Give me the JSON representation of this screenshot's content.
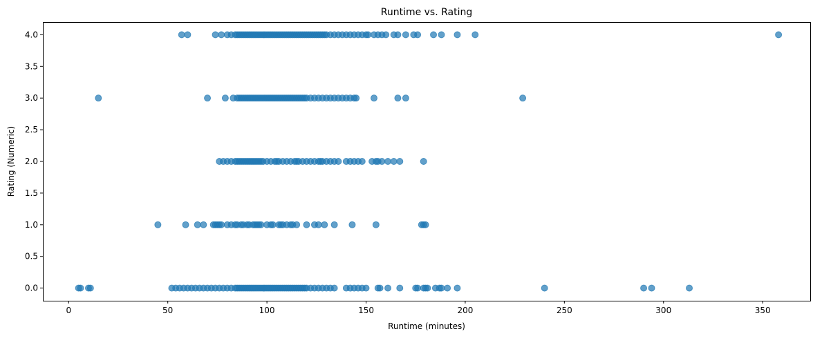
{
  "chart_data": {
    "type": "scatter",
    "title": "Runtime vs. Rating",
    "xlabel": "Runtime (minutes)",
    "ylabel": "Rating (Numeric)",
    "xlim": [
      -13,
      374
    ],
    "ylim": [
      -0.2,
      4.2
    ],
    "xticks": [
      0,
      50,
      100,
      150,
      200,
      250,
      300,
      350
    ],
    "xtick_labels": [
      "0",
      "50",
      "100",
      "150",
      "200",
      "250",
      "300",
      "350"
    ],
    "yticks": [
      0,
      0.5,
      1,
      1.5,
      2,
      2.5,
      3,
      3.5,
      4
    ],
    "ytick_labels": [
      "0.0",
      "0.5",
      "1.0",
      "1.5",
      "2.0",
      "2.5",
      "3.0",
      "3.5",
      "4.0"
    ],
    "grid": false,
    "marker_color": "#1f77b4",
    "marker_alpha": 0.7,
    "series": [
      {
        "points": [
          [
            57,
            4
          ],
          [
            60,
            4
          ],
          [
            74,
            4
          ],
          [
            77,
            4
          ],
          [
            80,
            4
          ],
          [
            82,
            4
          ],
          [
            84,
            4
          ],
          [
            85,
            4
          ],
          [
            86,
            4
          ],
          [
            87,
            4
          ],
          [
            88,
            4
          ],
          [
            89,
            4
          ],
          [
            90,
            4
          ],
          [
            91,
            4
          ],
          [
            92,
            4
          ],
          [
            93,
            4
          ],
          [
            94,
            4
          ],
          [
            95,
            4
          ],
          [
            96,
            4
          ],
          [
            97,
            4
          ],
          [
            98,
            4
          ],
          [
            99,
            4
          ],
          [
            100,
            4
          ],
          [
            101,
            4
          ],
          [
            102,
            4
          ],
          [
            103,
            4
          ],
          [
            104,
            4
          ],
          [
            105,
            4
          ],
          [
            106,
            4
          ],
          [
            107,
            4
          ],
          [
            108,
            4
          ],
          [
            109,
            4
          ],
          [
            110,
            4
          ],
          [
            111,
            4
          ],
          [
            112,
            4
          ],
          [
            113,
            4
          ],
          [
            114,
            4
          ],
          [
            115,
            4
          ],
          [
            116,
            4
          ],
          [
            117,
            4
          ],
          [
            118,
            4
          ],
          [
            119,
            4
          ],
          [
            120,
            4
          ],
          [
            121,
            4
          ],
          [
            122,
            4
          ],
          [
            123,
            4
          ],
          [
            124,
            4
          ],
          [
            125,
            4
          ],
          [
            126,
            4
          ],
          [
            127,
            4
          ],
          [
            128,
            4
          ],
          [
            129,
            4
          ],
          [
            130,
            4
          ],
          [
            132,
            4
          ],
          [
            134,
            4
          ],
          [
            136,
            4
          ],
          [
            138,
            4
          ],
          [
            140,
            4
          ],
          [
            142,
            4
          ],
          [
            144,
            4
          ],
          [
            146,
            4
          ],
          [
            148,
            4
          ],
          [
            150,
            4
          ],
          [
            151,
            4
          ],
          [
            154,
            4
          ],
          [
            156,
            4
          ],
          [
            158,
            4
          ],
          [
            160,
            4
          ],
          [
            164,
            4
          ],
          [
            166,
            4
          ],
          [
            170,
            4
          ],
          [
            174,
            4
          ],
          [
            176,
            4
          ],
          [
            184,
            4
          ],
          [
            188,
            4
          ],
          [
            196,
            4
          ],
          [
            205,
            4
          ],
          [
            358,
            4
          ],
          [
            15,
            3
          ],
          [
            70,
            3
          ],
          [
            79,
            3
          ],
          [
            83,
            3
          ],
          [
            85,
            3
          ],
          [
            86,
            3
          ],
          [
            87,
            3
          ],
          [
            88,
            3
          ],
          [
            89,
            3
          ],
          [
            90,
            3
          ],
          [
            91,
            3
          ],
          [
            92,
            3
          ],
          [
            93,
            3
          ],
          [
            94,
            3
          ],
          [
            95,
            3
          ],
          [
            96,
            3
          ],
          [
            97,
            3
          ],
          [
            98,
            3
          ],
          [
            99,
            3
          ],
          [
            100,
            3
          ],
          [
            101,
            3
          ],
          [
            102,
            3
          ],
          [
            103,
            3
          ],
          [
            104,
            3
          ],
          [
            105,
            3
          ],
          [
            106,
            3
          ],
          [
            107,
            3
          ],
          [
            108,
            3
          ],
          [
            109,
            3
          ],
          [
            110,
            3
          ],
          [
            111,
            3
          ],
          [
            112,
            3
          ],
          [
            113,
            3
          ],
          [
            114,
            3
          ],
          [
            115,
            3
          ],
          [
            116,
            3
          ],
          [
            117,
            3
          ],
          [
            118,
            3
          ],
          [
            119,
            3
          ],
          [
            120,
            3
          ],
          [
            122,
            3
          ],
          [
            124,
            3
          ],
          [
            126,
            3
          ],
          [
            128,
            3
          ],
          [
            130,
            3
          ],
          [
            132,
            3
          ],
          [
            134,
            3
          ],
          [
            136,
            3
          ],
          [
            138,
            3
          ],
          [
            140,
            3
          ],
          [
            142,
            3
          ],
          [
            144,
            3
          ],
          [
            145,
            3
          ],
          [
            154,
            3
          ],
          [
            166,
            3
          ],
          [
            170,
            3
          ],
          [
            229,
            3
          ],
          [
            76,
            2
          ],
          [
            78,
            2
          ],
          [
            80,
            2
          ],
          [
            82,
            2
          ],
          [
            84,
            2
          ],
          [
            85,
            2
          ],
          [
            86,
            2
          ],
          [
            87,
            2
          ],
          [
            88,
            2
          ],
          [
            89,
            2
          ],
          [
            90,
            2
          ],
          [
            91,
            2
          ],
          [
            92,
            2
          ],
          [
            93,
            2
          ],
          [
            94,
            2
          ],
          [
            95,
            2
          ],
          [
            96,
            2
          ],
          [
            97,
            2
          ],
          [
            98,
            2
          ],
          [
            100,
            2
          ],
          [
            102,
            2
          ],
          [
            104,
            2
          ],
          [
            105,
            2
          ],
          [
            106,
            2
          ],
          [
            108,
            2
          ],
          [
            110,
            2
          ],
          [
            112,
            2
          ],
          [
            114,
            2
          ],
          [
            115,
            2
          ],
          [
            116,
            2
          ],
          [
            118,
            2
          ],
          [
            120,
            2
          ],
          [
            122,
            2
          ],
          [
            124,
            2
          ],
          [
            126,
            2
          ],
          [
            127,
            2
          ],
          [
            128,
            2
          ],
          [
            130,
            2
          ],
          [
            132,
            2
          ],
          [
            134,
            2
          ],
          [
            136,
            2
          ],
          [
            140,
            2
          ],
          [
            142,
            2
          ],
          [
            144,
            2
          ],
          [
            146,
            2
          ],
          [
            148,
            2
          ],
          [
            153,
            2
          ],
          [
            155,
            2
          ],
          [
            156,
            2
          ],
          [
            158,
            2
          ],
          [
            161,
            2
          ],
          [
            164,
            2
          ],
          [
            167,
            2
          ],
          [
            179,
            2
          ],
          [
            45,
            1
          ],
          [
            59,
            1
          ],
          [
            65,
            1
          ],
          [
            68,
            1
          ],
          [
            73,
            1
          ],
          [
            74,
            1
          ],
          [
            75,
            1
          ],
          [
            76,
            1
          ],
          [
            77,
            1
          ],
          [
            80,
            1
          ],
          [
            82,
            1
          ],
          [
            84,
            1
          ],
          [
            85,
            1
          ],
          [
            87,
            1
          ],
          [
            88,
            1
          ],
          [
            90,
            1
          ],
          [
            91,
            1
          ],
          [
            93,
            1
          ],
          [
            94,
            1
          ],
          [
            95,
            1
          ],
          [
            96,
            1
          ],
          [
            97,
            1
          ],
          [
            100,
            1
          ],
          [
            102,
            1
          ],
          [
            103,
            1
          ],
          [
            106,
            1
          ],
          [
            107,
            1
          ],
          [
            108,
            1
          ],
          [
            110,
            1
          ],
          [
            112,
            1
          ],
          [
            113,
            1
          ],
          [
            115,
            1
          ],
          [
            120,
            1
          ],
          [
            124,
            1
          ],
          [
            126,
            1
          ],
          [
            129,
            1
          ],
          [
            134,
            1
          ],
          [
            143,
            1
          ],
          [
            155,
            1
          ],
          [
            178,
            1
          ],
          [
            179,
            1
          ],
          [
            180,
            1
          ],
          [
            5,
            0
          ],
          [
            6,
            0
          ],
          [
            10,
            0
          ],
          [
            11,
            0
          ],
          [
            52,
            0
          ],
          [
            54,
            0
          ],
          [
            56,
            0
          ],
          [
            58,
            0
          ],
          [
            60,
            0
          ],
          [
            62,
            0
          ],
          [
            64,
            0
          ],
          [
            66,
            0
          ],
          [
            68,
            0
          ],
          [
            70,
            0
          ],
          [
            72,
            0
          ],
          [
            74,
            0
          ],
          [
            76,
            0
          ],
          [
            78,
            0
          ],
          [
            80,
            0
          ],
          [
            82,
            0
          ],
          [
            84,
            0
          ],
          [
            85,
            0
          ],
          [
            86,
            0
          ],
          [
            87,
            0
          ],
          [
            88,
            0
          ],
          [
            89,
            0
          ],
          [
            90,
            0
          ],
          [
            91,
            0
          ],
          [
            92,
            0
          ],
          [
            93,
            0
          ],
          [
            94,
            0
          ],
          [
            95,
            0
          ],
          [
            96,
            0
          ],
          [
            97,
            0
          ],
          [
            98,
            0
          ],
          [
            99,
            0
          ],
          [
            100,
            0
          ],
          [
            101,
            0
          ],
          [
            102,
            0
          ],
          [
            103,
            0
          ],
          [
            104,
            0
          ],
          [
            105,
            0
          ],
          [
            106,
            0
          ],
          [
            107,
            0
          ],
          [
            108,
            0
          ],
          [
            109,
            0
          ],
          [
            110,
            0
          ],
          [
            111,
            0
          ],
          [
            112,
            0
          ],
          [
            113,
            0
          ],
          [
            114,
            0
          ],
          [
            115,
            0
          ],
          [
            116,
            0
          ],
          [
            117,
            0
          ],
          [
            118,
            0
          ],
          [
            119,
            0
          ],
          [
            120,
            0
          ],
          [
            122,
            0
          ],
          [
            124,
            0
          ],
          [
            126,
            0
          ],
          [
            128,
            0
          ],
          [
            130,
            0
          ],
          [
            132,
            0
          ],
          [
            134,
            0
          ],
          [
            140,
            0
          ],
          [
            142,
            0
          ],
          [
            144,
            0
          ],
          [
            146,
            0
          ],
          [
            148,
            0
          ],
          [
            150,
            0
          ],
          [
            156,
            0
          ],
          [
            157,
            0
          ],
          [
            161,
            0
          ],
          [
            167,
            0
          ],
          [
            175,
            0
          ],
          [
            176,
            0
          ],
          [
            179,
            0
          ],
          [
            180,
            0
          ],
          [
            181,
            0
          ],
          [
            185,
            0
          ],
          [
            187,
            0
          ],
          [
            188,
            0
          ],
          [
            191,
            0
          ],
          [
            196,
            0
          ],
          [
            240,
            0
          ],
          [
            290,
            0
          ],
          [
            294,
            0
          ],
          [
            313,
            0
          ]
        ]
      }
    ]
  }
}
